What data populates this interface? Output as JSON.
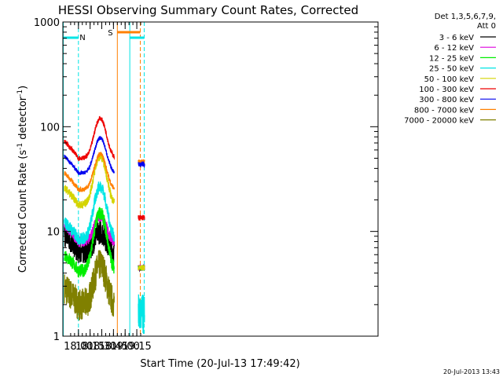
{
  "chart_data": {
    "type": "line",
    "title": "HESSI Observing Summary Count Rates, Corrected",
    "xlabel": "Start Time (20-Jul-13 17:49:42)",
    "ylabel_main": "Corrected Count Rate (s",
    "ylabel_sup1": "-1",
    "ylabel_mid": " detector",
    "ylabel_sup2": "-1",
    "ylabel_end": ")",
    "yscale": "log",
    "xlim": [
      -10,
      395
    ],
    "ylim": [
      1,
      1000
    ],
    "x_ticks": [
      {
        "label": "18:00",
        "value": 10
      },
      {
        "label": "18:15",
        "value": 25
      },
      {
        "label": "18:30",
        "value": 40
      },
      {
        "label": "18:45",
        "value": 55
      },
      {
        "label": "19:00",
        "value": 70
      },
      {
        "label": "19:15",
        "value": 85
      }
    ],
    "y_ticks": [
      {
        "label": "1",
        "value": 1
      },
      {
        "label": "10",
        "value": 10
      },
      {
        "label": "100",
        "value": 100
      },
      {
        "label": "1000",
        "value": 1000
      }
    ],
    "legend_header": [
      "Det 1,3,5,6,7,9,",
      "Att 0"
    ],
    "legend": [
      {
        "label": "3 - 6 keV",
        "color": "#000000"
      },
      {
        "label": "6 - 12 keV",
        "color": "#dd00dd"
      },
      {
        "label": "12 - 25 keV",
        "color": "#00ee00"
      },
      {
        "label": "25 - 50 keV",
        "color": "#00e5e5"
      },
      {
        "label": "50 - 100 keV",
        "color": "#d4d400"
      },
      {
        "label": "100 - 300 keV",
        "color": "#ee0000"
      },
      {
        "label": "300 - 800 keV",
        "color": "#0000ee"
      },
      {
        "label": "800 - 7000 keV",
        "color": "#ff8000"
      },
      {
        "label": "7000 - 20000 keV",
        "color": "#808000"
      }
    ],
    "segments": [
      {
        "x_start": -8,
        "x_end": 56
      },
      {
        "x_start": 87,
        "x_end": 95
      }
    ],
    "series_levels": [
      {
        "base": 6.5,
        "peak": 10,
        "noise": 0.28
      },
      {
        "base": 8.0,
        "peak": 14,
        "noise": 0.12
      },
      {
        "base": 4.2,
        "peak": 15,
        "noise": 0.15
      },
      {
        "base": 8.5,
        "peak": 27,
        "noise": 0.14
      },
      {
        "base": 18,
        "peak": 52,
        "noise": 0.09
      },
      {
        "base": 50,
        "peak": 120,
        "noise": 0.05
      },
      {
        "base": 36,
        "peak": 78,
        "noise": 0.04
      },
      {
        "base": 25,
        "peak": 55,
        "noise": 0.05
      },
      {
        "base": 2.0,
        "peak": 4.8,
        "noise": 0.35
      }
    ],
    "annotations": [
      {
        "text": "N",
        "color": "#00e5e5"
      },
      {
        "text": "S",
        "color": "#ff8000"
      }
    ],
    "timestamp": "20-Jul-2013 13:43"
  }
}
